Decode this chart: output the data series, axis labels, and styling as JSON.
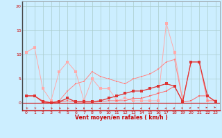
{
  "xlabel": "Vent moyen/en rafales ( km/h )",
  "bg_color": "#cceeff",
  "grid_color": "#aacccc",
  "line1_x": [
    0,
    1,
    2,
    3,
    4,
    5,
    6,
    7,
    8,
    9,
    10,
    11,
    12,
    13,
    14,
    15,
    16,
    17,
    18,
    19,
    20,
    21,
    22,
    23
  ],
  "line1_y": [
    1.5,
    1.5,
    0.3,
    0.1,
    0.3,
    1.0,
    0.3,
    0.3,
    0.3,
    0.5,
    1.0,
    1.5,
    2.0,
    2.5,
    2.5,
    3.0,
    3.5,
    4.0,
    3.5,
    0.3,
    8.5,
    8.5,
    1.5,
    0.3
  ],
  "line1_color": "#dd3333",
  "line1_lw": 0.9,
  "line1_ms": 2.5,
  "line2_x": [
    0,
    1,
    2,
    3,
    4,
    5,
    6,
    7,
    8,
    9,
    10,
    11,
    12,
    13,
    14,
    15,
    16,
    17,
    18,
    19,
    20,
    21,
    22,
    23
  ],
  "line2_y": [
    1.5,
    1.5,
    0.2,
    0.1,
    0.2,
    0.5,
    0.2,
    0.2,
    0.2,
    0.3,
    0.5,
    0.5,
    0.5,
    1.0,
    1.0,
    1.5,
    2.0,
    2.5,
    3.5,
    0.2,
    0.5,
    1.5,
    1.5,
    0.3
  ],
  "line2_color": "#ff6666",
  "line2_lw": 0.7,
  "line2_ms": 2.0,
  "line3_x": [
    0,
    1,
    2,
    3,
    4,
    5,
    6,
    7,
    8,
    9,
    10,
    11,
    12,
    13,
    14,
    15,
    16,
    17,
    18,
    19,
    20,
    21,
    22,
    23
  ],
  "line3_y": [
    10.5,
    11.5,
    3.0,
    0.5,
    6.5,
    8.5,
    6.5,
    0.5,
    5.0,
    3.0,
    3.0,
    0.5,
    1.0,
    0.5,
    0.5,
    0.5,
    0.5,
    16.5,
    10.5,
    0.5,
    8.5,
    8.5,
    0.5,
    0.5
  ],
  "line3_color": "#ffaaaa",
  "line3_lw": 0.7,
  "line3_ms": 2.5,
  "line4_x": [
    0,
    1,
    2,
    3,
    4,
    5,
    6,
    7,
    8,
    9,
    10,
    11,
    12,
    13,
    14,
    15,
    16,
    17,
    18,
    19,
    20,
    21,
    22,
    23
  ],
  "line4_y": [
    1.5,
    1.5,
    0.5,
    0.1,
    0.5,
    2.5,
    4.0,
    4.5,
    6.5,
    5.5,
    5.0,
    4.5,
    4.0,
    5.0,
    5.5,
    6.0,
    7.0,
    8.5,
    9.0,
    0.5,
    8.5,
    8.5,
    0.5,
    0.5
  ],
  "line4_color": "#ff8888",
  "line4_lw": 0.7,
  "line4_ms": 2.0,
  "yticks": [
    0,
    5,
    10,
    15,
    20
  ],
  "ylim": [
    -1.5,
    21
  ],
  "xlim": [
    -0.5,
    23.5
  ],
  "xticks": [
    0,
    1,
    2,
    3,
    4,
    5,
    6,
    7,
    8,
    9,
    10,
    11,
    12,
    13,
    14,
    15,
    16,
    17,
    18,
    19,
    20,
    21,
    22,
    23
  ],
  "arrow_color": "#cc0000",
  "arrow_angles": [
    225,
    225,
    225,
    215,
    215,
    210,
    200,
    180,
    165,
    155,
    150,
    150,
    155,
    160,
    160,
    155,
    155,
    155,
    150,
    135,
    120,
    110,
    95,
    85
  ]
}
